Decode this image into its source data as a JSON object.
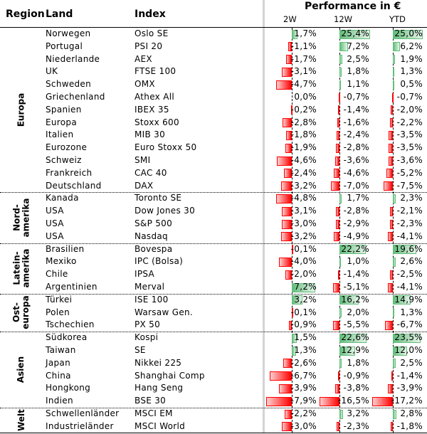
{
  "header": {
    "region": "Region",
    "land": "Land",
    "index": "Index",
    "performance": "Performance in €",
    "cols": [
      "2W",
      "12W",
      "YTD"
    ]
  },
  "chart_data": {
    "type": "table",
    "title": "Performance in €",
    "columns": [
      "Region",
      "Land",
      "Index",
      "2W",
      "12W",
      "YTD"
    ],
    "colors": {
      "negative": "#ff0000",
      "positive": "#63be7b"
    },
    "regions": [
      {
        "name": "Europa",
        "rows": [
          [
            "Norwegen",
            "Oslo SE",
            1.7,
            25.4,
            25.0
          ],
          [
            "Portugal",
            "PSI 20",
            -1.1,
            7.2,
            6.2
          ],
          [
            "Niederlande",
            "AEX",
            -1.7,
            2.5,
            1.9
          ],
          [
            "UK",
            "FTSE 100",
            -3.1,
            1.8,
            1.3
          ],
          [
            "Schweden",
            "OMX",
            -4.7,
            1.1,
            0.5
          ],
          [
            "Griechenland",
            "Athex All",
            0.0,
            -0.7,
            -0.7
          ],
          [
            "Spanien",
            "IBEX 35",
            -0.2,
            -1.4,
            -2.0
          ],
          [
            "Europa",
            "Stoxx 600",
            -2.8,
            -1.6,
            -2.2
          ],
          [
            "Italien",
            "MIB 30",
            -1.8,
            -2.4,
            -3.5
          ],
          [
            "Eurozone",
            "Euro Stoxx 50",
            -1.9,
            -2.8,
            -3.5
          ],
          [
            "Schweiz",
            "SMI",
            -4.6,
            -3.6,
            -3.6
          ],
          [
            "Frankreich",
            "CAC 40",
            -2.4,
            -4.6,
            -5.2
          ],
          [
            "Deutschland",
            "DAX",
            -3.2,
            -7.0,
            -7.5
          ]
        ]
      },
      {
        "name": "Nord-\namerika",
        "rows": [
          [
            "Kanada",
            "Toronto SE",
            -4.8,
            1.7,
            2.3
          ],
          [
            "USA",
            "Dow Jones 30",
            -3.1,
            -2.8,
            -2.1
          ],
          [
            "USA",
            "S&P 500",
            -3.0,
            -2.9,
            -2.3
          ],
          [
            "USA",
            "Nasdaq",
            -3.2,
            -4.9,
            -4.1
          ]
        ]
      },
      {
        "name": "Latein-\namerika",
        "rows": [
          [
            "Brasilien",
            "Bovespa",
            -0.1,
            22.2,
            19.6
          ],
          [
            "Mexiko",
            "IPC (Bolsa)",
            -4.0,
            1.0,
            2.6
          ],
          [
            "Chile",
            "IPSA",
            -2.0,
            -1.4,
            -2.5
          ],
          [
            "Argentinien",
            "Merval",
            7.2,
            -5.1,
            -4.1
          ]
        ]
      },
      {
        "name": "Ost-\neuropa",
        "rows": [
          [
            "Türkei",
            "ISE 100",
            3.2,
            16.2,
            14.9
          ],
          [
            "Polen",
            "Warsaw Gen.",
            -0.1,
            2.0,
            1.3
          ],
          [
            "Tschechien",
            "PX 50",
            -0.9,
            -5.5,
            -6.7
          ]
        ]
      },
      {
        "name": "Asien",
        "rows": [
          [
            "Südkorea",
            "Kospi",
            1.5,
            22.6,
            23.5
          ],
          [
            "Taiwan",
            "SE",
            1.3,
            12.9,
            12.0
          ],
          [
            "Japan",
            "Nikkei 225",
            -2.6,
            1.8,
            2.5
          ],
          [
            "China",
            "Shanghai Comp",
            -6.7,
            -0.9,
            -1.4
          ],
          [
            "Hongkong",
            "Hang Seng",
            -3.9,
            -3.8,
            -3.9
          ],
          [
            "Indien",
            "BSE 30",
            -7.9,
            -16.5,
            -17.2
          ]
        ]
      },
      {
        "name": "Welt",
        "rows": [
          [
            "Schwellenländer",
            "MSCI EM",
            -2.2,
            3.2,
            2.8
          ],
          [
            "Industrieländer",
            "MSCI World",
            -3.0,
            -2.3,
            -1.8
          ]
        ]
      }
    ]
  }
}
